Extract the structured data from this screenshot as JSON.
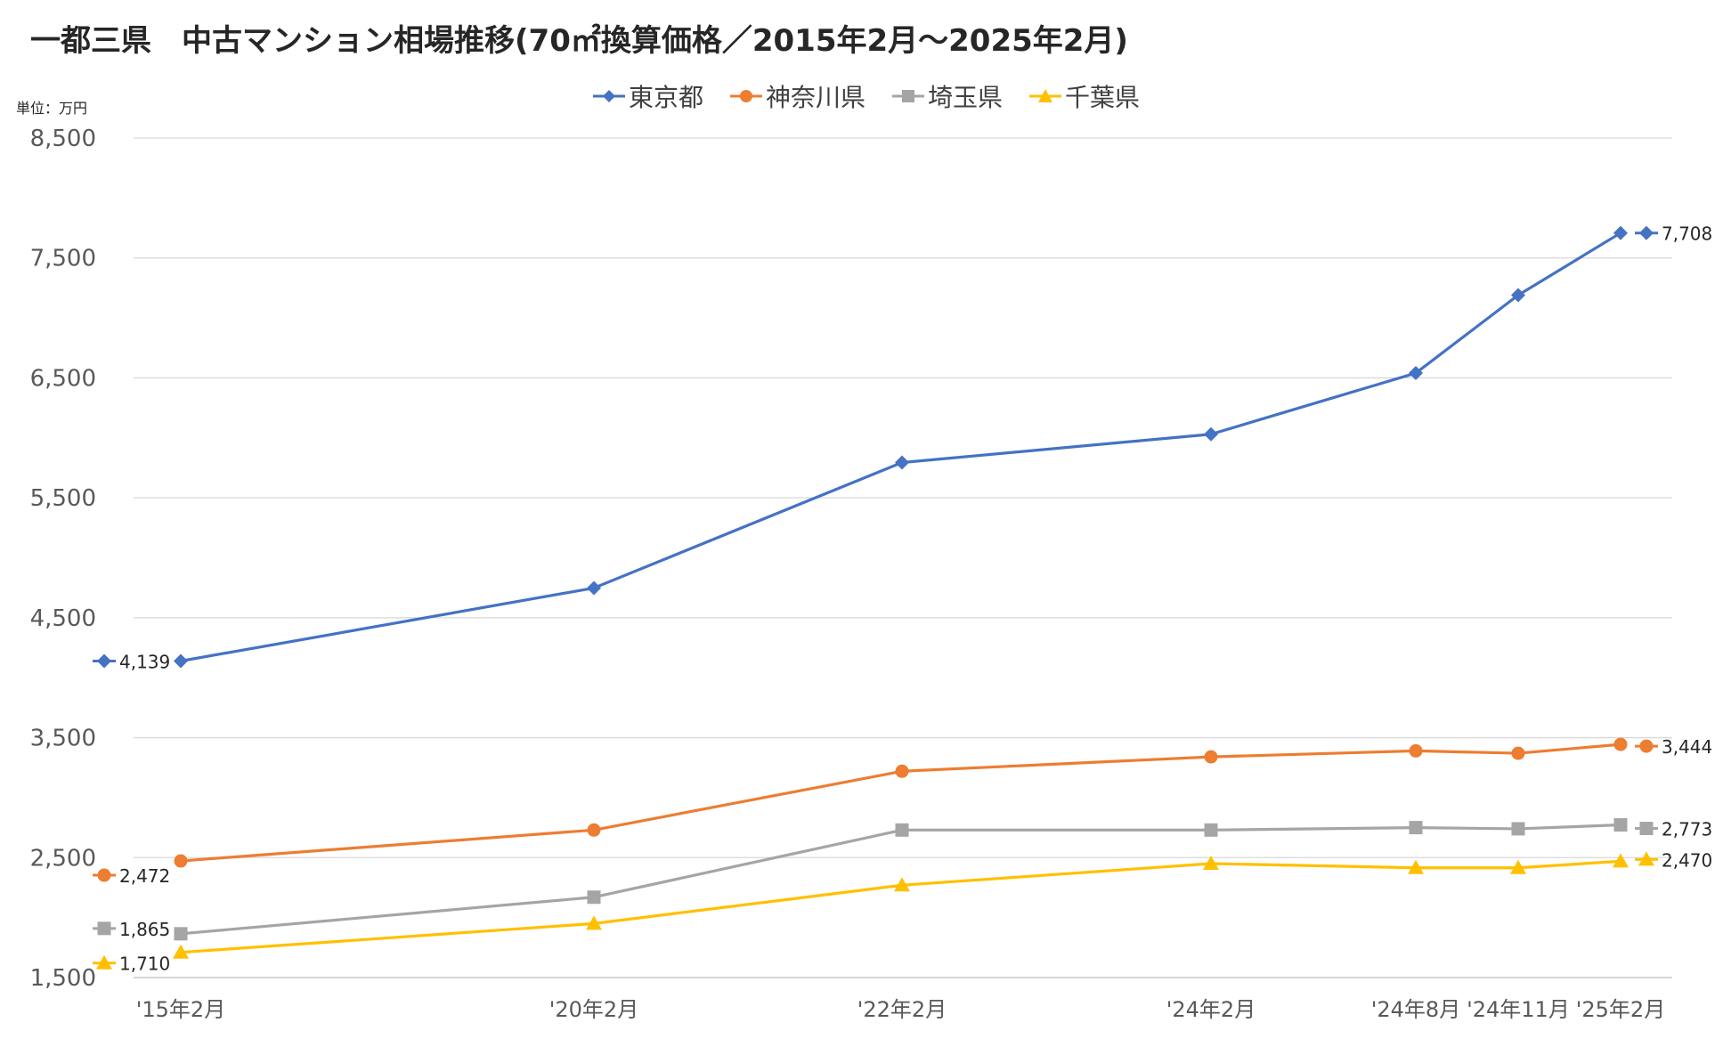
{
  "chart_data": {
    "type": "line",
    "title": "一都三県　中古マンション相場推移(70㎡換算価格／2015年2月～2025年2月)",
    "unit_label": "単位：万円",
    "categories": [
      "'15年2月",
      "'20年2月",
      "'22年2月",
      "'24年2月",
      "'24年8月",
      "'24年11月",
      "'25年2月"
    ],
    "ylim": [
      1500,
      8500
    ],
    "yticks": [
      "8,500",
      "7,500",
      "6,500",
      "5,500",
      "4,500",
      "3,500",
      "2,500",
      "1,500"
    ],
    "ytick_values": [
      8500,
      7500,
      6500,
      5500,
      4500,
      3500,
      2500,
      1500
    ],
    "legend_position": "top-center",
    "grid": "horizontal",
    "series": [
      {
        "name": "東京都",
        "color": "#4472C4",
        "marker": "diamond",
        "values": [
          4139,
          4748,
          5794,
          6030,
          6540,
          7190,
          7708
        ],
        "start_label": "4,139",
        "end_label": "7,708"
      },
      {
        "name": "神奈川県",
        "color": "#ED7D31",
        "marker": "circle",
        "values": [
          2472,
          2730,
          3220,
          3340,
          3390,
          3370,
          3444
        ],
        "start_label": "2,472",
        "end_label": "3,444"
      },
      {
        "name": "埼玉県",
        "color": "#A5A5A5",
        "marker": "square",
        "values": [
          1865,
          2170,
          2730,
          2730,
          2750,
          2740,
          2773
        ],
        "start_label": "1,865",
        "end_label": "2,773"
      },
      {
        "name": "千葉県",
        "color": "#FFC000",
        "marker": "triangle",
        "values": [
          1710,
          1950,
          2270,
          2450,
          2415,
          2415,
          2470
        ],
        "start_label": "1,710",
        "end_label": "2,470"
      }
    ]
  }
}
